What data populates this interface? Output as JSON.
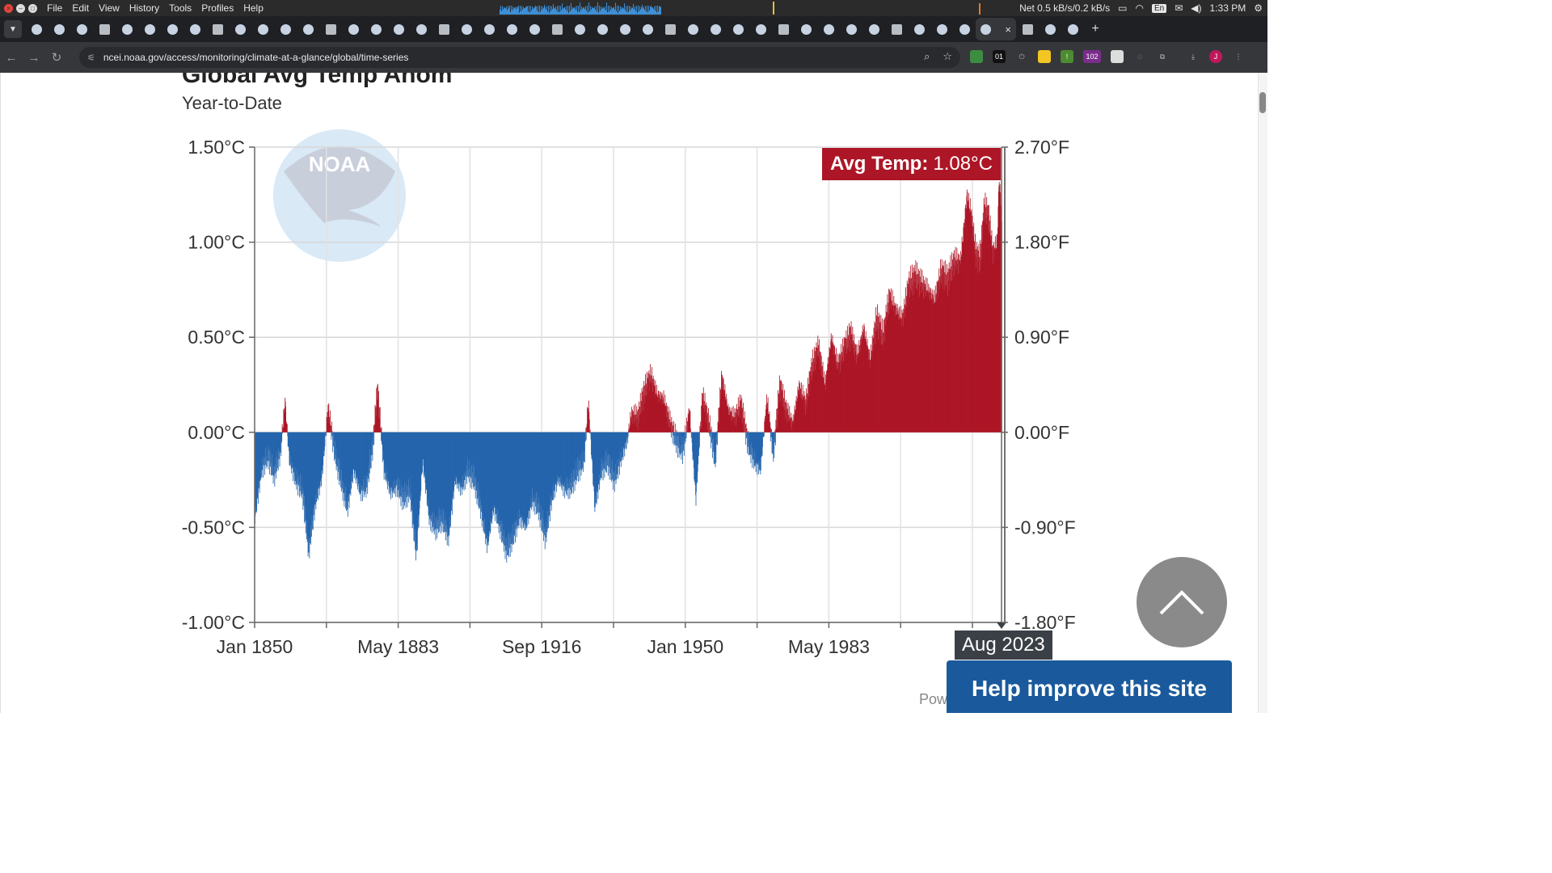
{
  "os": {
    "menu": [
      "File",
      "Edit",
      "View",
      "History",
      "Tools",
      "Profiles",
      "Help"
    ],
    "net": "Net 0.5 kB/s/0.2 kB/s",
    "lang": "En",
    "time": "1:33 PM"
  },
  "browser": {
    "url": "ncei.noaa.gov/access/monitoring/climate-at-a-glance/global/time-series",
    "ext_counter": "01",
    "ext_badge": "102"
  },
  "page": {
    "title": "Global Avg Temp Anom",
    "subtitle": "Year-to-Date",
    "logo_text": "NOAA",
    "tooltip_label": "Avg Temp:",
    "tooltip_value": "1.08°C",
    "date_flag": "Aug 2023",
    "help_button": "Help improve this site",
    "powered_text": "Pow"
  },
  "colors": {
    "positive": "#ad1626",
    "negative": "#2565ad",
    "help_bg": "#1a5a9c"
  },
  "chart_data": {
    "type": "bar",
    "title": "Global Avg Temp Anom",
    "subtitle": "Year-to-Date",
    "xlabel": "",
    "ylabel": "",
    "x_ticks": [
      "Jan 1850",
      "May 1883",
      "Sep 1916",
      "Jan 1950",
      "May 1983"
    ],
    "y_ticks_left": [
      "1.50°C",
      "1.00°C",
      "0.50°C",
      "0.00°C",
      "-0.50°C",
      "-1.00°C"
    ],
    "y_ticks_right": [
      "2.70°F",
      "1.80°F",
      "0.90°F",
      "0.00°F",
      "-0.90°F",
      "-1.80°F"
    ],
    "ylim": [
      -1.0,
      1.5
    ],
    "x_range": [
      "Jan 1850",
      "Aug 2023"
    ],
    "grid": true,
    "highlight": {
      "date": "Aug 2023",
      "value": 1.08
    },
    "series": [
      {
        "name": "",
        "anchors": [
          [
            1850.0,
            -0.46
          ],
          [
            1851.5,
            -0.2
          ],
          [
            1853.0,
            -0.12
          ],
          [
            1854.5,
            -0.22
          ],
          [
            1856.0,
            -0.1
          ],
          [
            1857.0,
            0.17
          ],
          [
            1858.0,
            -0.15
          ],
          [
            1859.5,
            -0.25
          ],
          [
            1861.0,
            -0.3
          ],
          [
            1862.5,
            -0.62
          ],
          [
            1864.0,
            -0.38
          ],
          [
            1865.5,
            -0.25
          ],
          [
            1867.0,
            0.13
          ],
          [
            1868.5,
            -0.1
          ],
          [
            1870.0,
            -0.25
          ],
          [
            1871.5,
            -0.4
          ],
          [
            1873.0,
            -0.2
          ],
          [
            1874.5,
            -0.32
          ],
          [
            1876.0,
            -0.28
          ],
          [
            1877.5,
            -0.05
          ],
          [
            1878.5,
            0.24
          ],
          [
            1880.0,
            -0.2
          ],
          [
            1881.5,
            -0.32
          ],
          [
            1883.0,
            -0.28
          ],
          [
            1884.5,
            -0.35
          ],
          [
            1886.0,
            -0.3
          ],
          [
            1887.5,
            -0.65
          ],
          [
            1889.0,
            -0.15
          ],
          [
            1890.5,
            -0.45
          ],
          [
            1892.0,
            -0.5
          ],
          [
            1893.5,
            -0.45
          ],
          [
            1895.0,
            -0.55
          ],
          [
            1896.5,
            -0.25
          ],
          [
            1898.0,
            -0.3
          ],
          [
            1899.5,
            -0.2
          ],
          [
            1901.0,
            -0.25
          ],
          [
            1902.5,
            -0.4
          ],
          [
            1904.0,
            -0.6
          ],
          [
            1905.5,
            -0.4
          ],
          [
            1907.0,
            -0.5
          ],
          [
            1908.5,
            -0.62
          ],
          [
            1910.0,
            -0.55
          ],
          [
            1911.5,
            -0.45
          ],
          [
            1913.0,
            -0.5
          ],
          [
            1914.5,
            -0.35
          ],
          [
            1916.0,
            -0.4
          ],
          [
            1917.5,
            -0.55
          ],
          [
            1919.0,
            -0.35
          ],
          [
            1920.5,
            -0.25
          ],
          [
            1922.0,
            -0.3
          ],
          [
            1923.5,
            -0.28
          ],
          [
            1925.0,
            -0.2
          ],
          [
            1926.5,
            -0.15
          ],
          [
            1927.5,
            0.16
          ],
          [
            1929.0,
            -0.4
          ],
          [
            1930.5,
            -0.2
          ],
          [
            1932.0,
            -0.15
          ],
          [
            1933.5,
            -0.25
          ],
          [
            1935.0,
            -0.15
          ],
          [
            1936.5,
            -0.05
          ],
          [
            1937.5,
            0.1
          ],
          [
            1939.0,
            0.08
          ],
          [
            1940.5,
            0.22
          ],
          [
            1942.0,
            0.3
          ],
          [
            1943.5,
            0.2
          ],
          [
            1945.0,
            0.18
          ],
          [
            1946.5,
            0.05
          ],
          [
            1948.0,
            -0.05
          ],
          [
            1949.5,
            -0.1
          ],
          [
            1951.0,
            0.12
          ],
          [
            1952.5,
            -0.35
          ],
          [
            1954.0,
            0.2
          ],
          [
            1955.5,
            0.05
          ],
          [
            1957.0,
            -0.15
          ],
          [
            1958.5,
            0.3
          ],
          [
            1960.0,
            0.12
          ],
          [
            1961.5,
            0.08
          ],
          [
            1963.0,
            0.15
          ],
          [
            1964.5,
            -0.05
          ],
          [
            1966.0,
            -0.15
          ],
          [
            1967.5,
            -0.2
          ],
          [
            1969.0,
            0.18
          ],
          [
            1970.5,
            -0.12
          ],
          [
            1972.0,
            0.25
          ],
          [
            1973.5,
            0.12
          ],
          [
            1975.0,
            0.05
          ],
          [
            1976.5,
            0.25
          ],
          [
            1978.0,
            0.15
          ],
          [
            1979.5,
            0.35
          ],
          [
            1981.0,
            0.45
          ],
          [
            1982.5,
            0.25
          ],
          [
            1984.0,
            0.5
          ],
          [
            1985.5,
            0.35
          ],
          [
            1987.0,
            0.45
          ],
          [
            1988.5,
            0.52
          ],
          [
            1990.0,
            0.4
          ],
          [
            1991.5,
            0.55
          ],
          [
            1993.0,
            0.38
          ],
          [
            1994.5,
            0.6
          ],
          [
            1996.0,
            0.5
          ],
          [
            1997.5,
            0.72
          ],
          [
            1999.0,
            0.65
          ],
          [
            2000.5,
            0.6
          ],
          [
            2002.0,
            0.78
          ],
          [
            2003.5,
            0.82
          ],
          [
            2005.0,
            0.78
          ],
          [
            2006.5,
            0.75
          ],
          [
            2008.0,
            0.7
          ],
          [
            2009.5,
            0.85
          ],
          [
            2011.0,
            0.8
          ],
          [
            2012.5,
            0.9
          ],
          [
            2014.0,
            0.9
          ],
          [
            2015.5,
            1.25
          ],
          [
            2016.5,
            1.15
          ],
          [
            2017.5,
            0.95
          ],
          [
            2018.5,
            0.9
          ],
          [
            2019.5,
            1.18
          ],
          [
            2020.5,
            1.15
          ],
          [
            2021.5,
            0.95
          ],
          [
            2022.5,
            1.0
          ],
          [
            2023.0,
            1.35
          ],
          [
            2023.6,
            1.08
          ]
        ]
      }
    ]
  }
}
